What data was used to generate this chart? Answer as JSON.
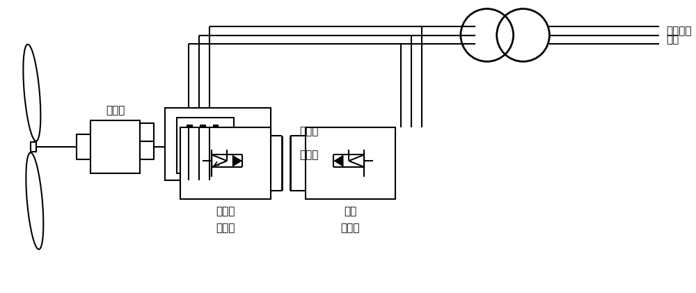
{
  "bg_color": "#ffffff",
  "lc": "#000000",
  "lw": 1.5,
  "lw2": 2.0,
  "figsize": [
    10.0,
    4.21
  ],
  "dpi": 100,
  "xlim": [
    0,
    10
  ],
  "ylim": [
    0,
    4.21
  ],
  "label_gearbox": "齿轮箱",
  "label_dfig1": "双馈感",
  "label_dfig2": "应电机",
  "label_rotor1": "转子侧",
  "label_rotor2": "变流器",
  "label_grid1": "网侧",
  "label_grid2": "变流器",
  "label_sys1": "并网交流",
  "label_sys2": "系统",
  "fs": 11
}
